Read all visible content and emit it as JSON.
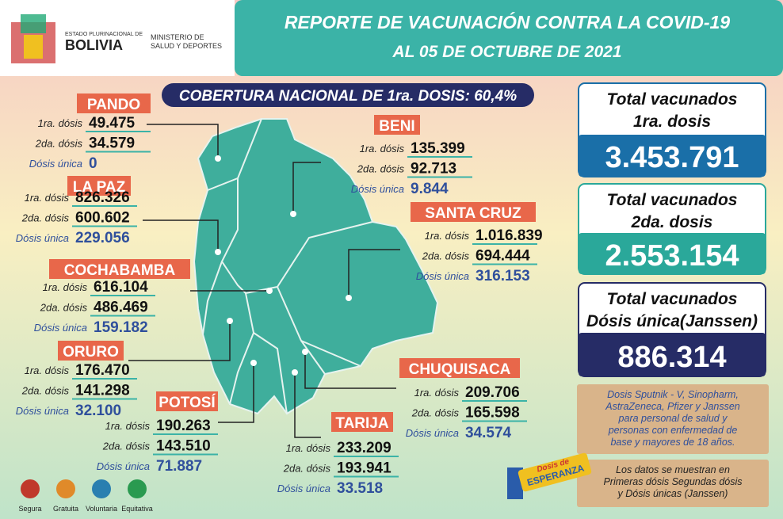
{
  "header": {
    "logo": {
      "line1": "ESTADO PLURINACIONAL DE",
      "line2": "BOLIVIA",
      "line3": "MINISTERIO DE",
      "line4": "SALUD Y DEPORTES"
    },
    "title": "REPORTE DE VACUNACIÓN CONTRA LA COVID-19",
    "subtitle": "AL 05 DE OCTUBRE DE 2021"
  },
  "coverage": "COBERTURA NACIONAL DE 1ra. DOSIS: 60,4%",
  "dose_labels": [
    "1ra. dósis",
    "2da. dósis",
    "Dósis única"
  ],
  "departments": [
    {
      "name": "PANDO",
      "first": "49.475",
      "second": "34.579",
      "single": "0"
    },
    {
      "name": "LA PAZ",
      "first": "826.326",
      "second": "600.602",
      "single": "229.056"
    },
    {
      "name": "COCHABAMBA",
      "first": "616.104",
      "second": "486.469",
      "single": "159.182"
    },
    {
      "name": "ORURO",
      "first": "176.470",
      "second": "141.298",
      "single": "32.100"
    },
    {
      "name": "POTOSÍ",
      "first": "190.263",
      "second": "143.510",
      "single": "71.887"
    },
    {
      "name": "BENI",
      "first": "135.399",
      "second": "92.713",
      "single": "9.844"
    },
    {
      "name": "SANTA CRUZ",
      "first": "1.016.839",
      "second": "694.444",
      "single": "316.153"
    },
    {
      "name": "CHUQUISACA",
      "first": "209.706",
      "second": "165.598",
      "single": "34.574"
    },
    {
      "name": "TARIJA",
      "first": "233.209",
      "second": "193.941",
      "single": "33.518"
    }
  ],
  "totals": [
    {
      "line1": "Total vacunados",
      "line2": "1ra. dosis",
      "value": "3.453.791"
    },
    {
      "line1": "Total vacunados",
      "line2": "2da. dosis",
      "value": "2.553.154"
    },
    {
      "line1": "Total vacunados",
      "line2": "Dósis única(Janssen)",
      "value": "886.314"
    }
  ],
  "note_vaccines": [
    "Dosis Sputnik - V, Sinopharm,",
    "AstraZeneca, Pfizer y Janssen",
    "para personal de salud y",
    "personas con enfermedad de",
    "base y mayores de 18 años."
  ],
  "note_data": [
    "Los datos se muestran en",
    "Primeras dósis Segundas dósis",
    "y Dósis únicas (Janssen)"
  ],
  "badge": [
    "Dosis de",
    "ESPERANZA"
  ],
  "icons": [
    "Segura",
    "Gratuita",
    "Voluntaria",
    "Equitativa"
  ]
}
